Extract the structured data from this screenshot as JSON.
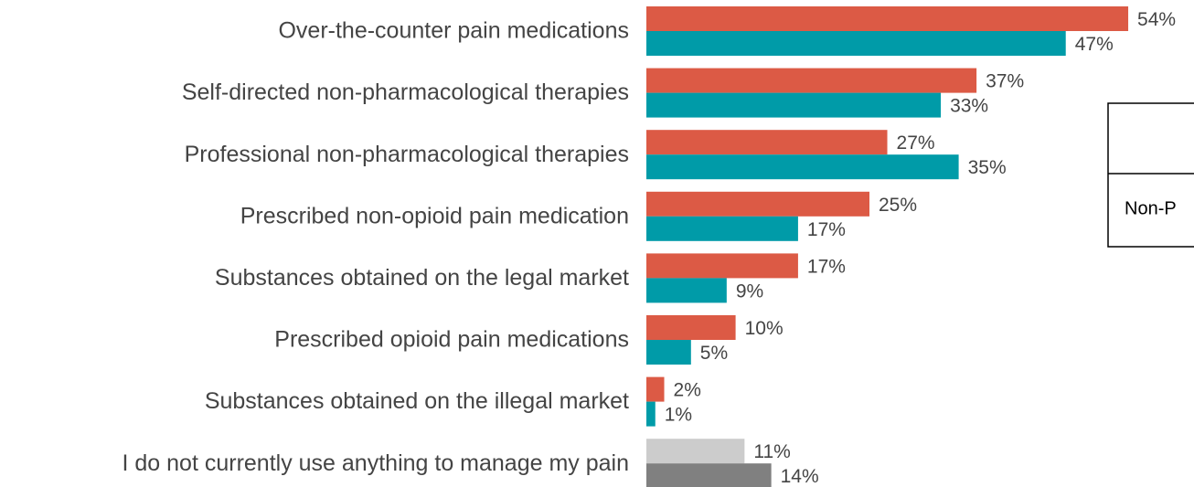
{
  "chart_data": {
    "type": "hbar",
    "categories": [
      "Over-the-counter pain medications",
      "Self-directed non-pharmacological therapies",
      "Professional non-pharmacological therapies",
      "Prescribed non-opioid pain medication",
      "Substances obtained on the legal market",
      "Prescribed opioid pain medications",
      "Substances obtained on the illegal market",
      "I do not currently use anything to manage my pain"
    ],
    "series": [
      {
        "color": "#dc5a45",
        "colors": [
          "#dc5a45",
          "#dc5a45",
          "#dc5a45",
          "#dc5a45",
          "#dc5a45",
          "#dc5a45",
          "#dc5a45",
          "#cccccc"
        ],
        "values": [
          54,
          37,
          27,
          25,
          17,
          10,
          2,
          11
        ],
        "value_labels": [
          "54%",
          "37%",
          "27%",
          "25%",
          "17%",
          "10%",
          "2%",
          "11%"
        ]
      },
      {
        "name": "Non-P",
        "color": "#009ba8",
        "colors": [
          "#009ba8",
          "#009ba8",
          "#009ba8",
          "#009ba8",
          "#009ba8",
          "#009ba8",
          "#009ba8",
          "#808080"
        ],
        "values": [
          47,
          33,
          35,
          17,
          9,
          5,
          1,
          14
        ],
        "value_labels": [
          "47%",
          "33%",
          "35%",
          "17%",
          "9%",
          "5%",
          "1%",
          "14%"
        ]
      }
    ]
  }
}
